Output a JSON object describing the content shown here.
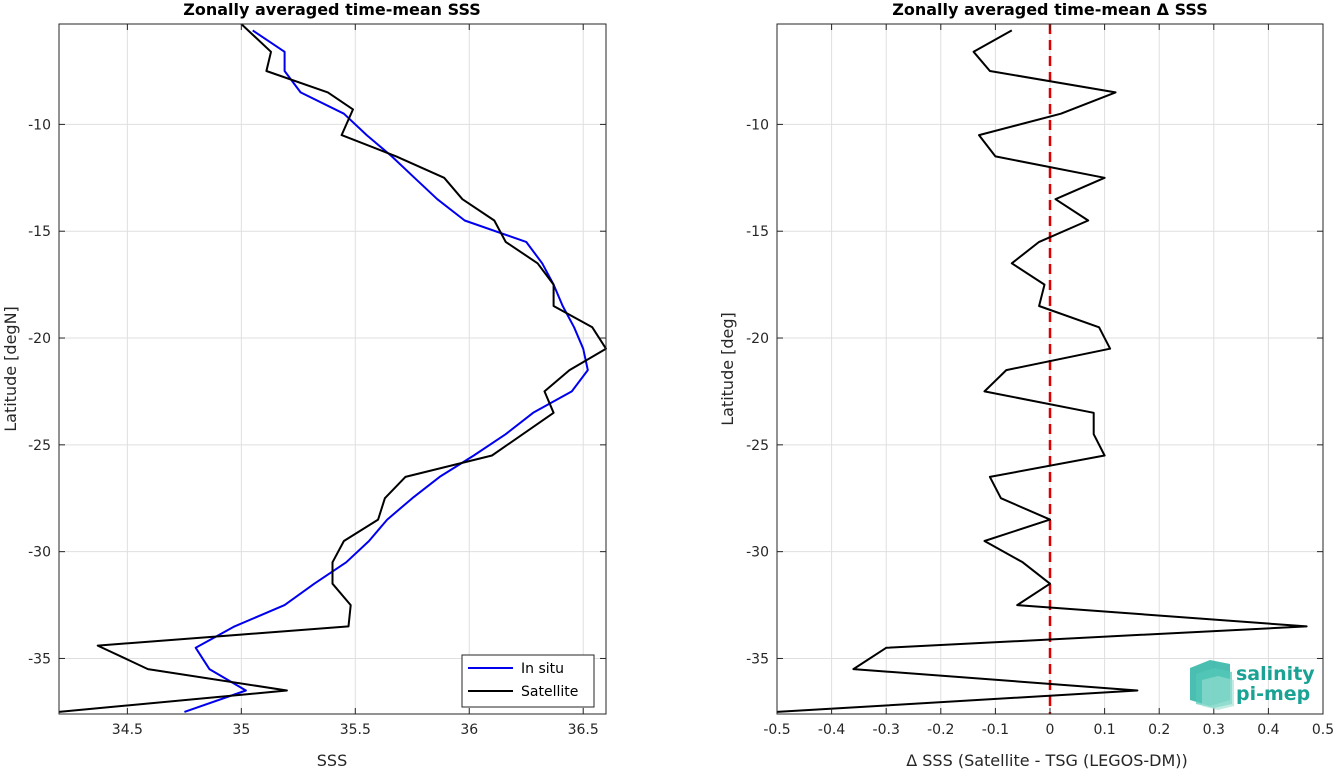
{
  "chart_data": [
    {
      "type": "line",
      "title": "Zonally averaged time-mean SSS",
      "xlabel": "SSS",
      "ylabel": "Latitude [degN]",
      "xlim": [
        34.2,
        36.6
      ],
      "ylim": [
        -37.6,
        -5.3
      ],
      "xticks": [
        34.5,
        35,
        35.5,
        36,
        36.5
      ],
      "xtick_labels": [
        "34.5",
        "35",
        "35.5",
        "36",
        "36.5"
      ],
      "yticks": [
        -10,
        -15,
        -20,
        -25,
        -30,
        -35
      ],
      "ytick_labels": [
        "-10",
        "-15",
        "-20",
        "-25",
        "-30",
        "-35"
      ],
      "grid": true,
      "legend_position": "bottom-right",
      "series": [
        {
          "name": "In situ",
          "color": "#0000ee",
          "points": [
            [
              35.05,
              -5.6
            ],
            [
              35.19,
              -6.6
            ],
            [
              35.19,
              -7.5
            ],
            [
              35.26,
              -8.5
            ],
            [
              35.45,
              -9.5
            ],
            [
              35.55,
              -10.5
            ],
            [
              35.66,
              -11.5
            ],
            [
              35.76,
              -12.5
            ],
            [
              35.86,
              -13.5
            ],
            [
              35.98,
              -14.5
            ],
            [
              36.25,
              -15.5
            ],
            [
              36.32,
              -16.5
            ],
            [
              36.37,
              -17.5
            ],
            [
              36.41,
              -18.5
            ],
            [
              36.46,
              -19.5
            ],
            [
              36.5,
              -20.5
            ],
            [
              36.52,
              -21.5
            ],
            [
              36.45,
              -22.5
            ],
            [
              36.28,
              -23.5
            ],
            [
              36.16,
              -24.5
            ],
            [
              36.02,
              -25.5
            ],
            [
              35.87,
              -26.5
            ],
            [
              35.75,
              -27.5
            ],
            [
              35.64,
              -28.5
            ],
            [
              35.56,
              -29.5
            ],
            [
              35.46,
              -30.5
            ],
            [
              35.32,
              -31.5
            ],
            [
              35.19,
              -32.5
            ],
            [
              34.97,
              -33.5
            ],
            [
              34.8,
              -34.5
            ],
            [
              34.86,
              -35.5
            ],
            [
              35.02,
              -36.5
            ],
            [
              34.75,
              -37.5
            ]
          ]
        },
        {
          "name": "Satellite",
          "color": "#000000",
          "points": [
            [
              35.0,
              -5.3
            ],
            [
              35.13,
              -6.6
            ],
            [
              35.11,
              -7.5
            ],
            [
              35.38,
              -8.5
            ],
            [
              35.49,
              -9.3
            ],
            [
              35.44,
              -10.5
            ],
            [
              35.68,
              -11.5
            ],
            [
              35.89,
              -12.5
            ],
            [
              35.97,
              -13.5
            ],
            [
              36.11,
              -14.5
            ],
            [
              36.16,
              -15.5
            ],
            [
              36.3,
              -16.5
            ],
            [
              36.37,
              -17.5
            ],
            [
              36.37,
              -18.5
            ],
            [
              36.54,
              -19.5
            ],
            [
              36.6,
              -20.5
            ],
            [
              36.44,
              -21.5
            ],
            [
              36.33,
              -22.5
            ],
            [
              36.37,
              -23.5
            ],
            [
              36.1,
              -25.5
            ],
            [
              35.72,
              -26.5
            ],
            [
              35.63,
              -27.5
            ],
            [
              35.6,
              -28.5
            ],
            [
              35.45,
              -29.5
            ],
            [
              35.4,
              -30.5
            ],
            [
              35.4,
              -31.5
            ],
            [
              35.48,
              -32.5
            ],
            [
              35.47,
              -33.5
            ],
            [
              34.37,
              -34.4
            ],
            [
              34.59,
              -35.5
            ],
            [
              35.2,
              -36.5
            ],
            [
              34.2,
              -37.5
            ]
          ]
        }
      ]
    },
    {
      "type": "line",
      "title": "Zonally averaged time-mean Δ SSS",
      "xlabel": "Δ SSS (Satellite - TSG (LEGOS-DM))",
      "ylabel": "Latitude [deg]",
      "xlim": [
        -0.5,
        0.5
      ],
      "ylim": [
        -37.6,
        -5.3
      ],
      "xticks": [
        -0.5,
        -0.4,
        -0.3,
        -0.2,
        -0.1,
        0,
        0.1,
        0.2,
        0.3,
        0.4,
        0.5
      ],
      "xtick_labels": [
        "-0.5",
        "-0.4",
        "-0.3",
        "-0.2",
        "-0.1",
        "0",
        "0.1",
        "0.2",
        "0.3",
        "0.4",
        "0.5"
      ],
      "yticks": [
        -10,
        -15,
        -20,
        -25,
        -30,
        -35
      ],
      "ytick_labels": [
        "-10",
        "-15",
        "-20",
        "-25",
        "-30",
        "-35"
      ],
      "grid": true,
      "reference_line": {
        "x": 0,
        "color": "#dd0000",
        "style": "dashed"
      },
      "series": [
        {
          "name": "",
          "color": "#000000",
          "points": [
            [
              -0.07,
              -5.6
            ],
            [
              -0.14,
              -6.6
            ],
            [
              -0.11,
              -7.5
            ],
            [
              0.12,
              -8.5
            ],
            [
              0.02,
              -9.5
            ],
            [
              -0.13,
              -10.5
            ],
            [
              -0.1,
              -11.5
            ],
            [
              0.1,
              -12.5
            ],
            [
              0.01,
              -13.5
            ],
            [
              0.07,
              -14.5
            ],
            [
              -0.02,
              -15.5
            ],
            [
              -0.07,
              -16.5
            ],
            [
              -0.01,
              -17.5
            ],
            [
              -0.02,
              -18.5
            ],
            [
              0.09,
              -19.5
            ],
            [
              0.11,
              -20.5
            ],
            [
              -0.08,
              -21.5
            ],
            [
              -0.12,
              -22.5
            ],
            [
              0.08,
              -23.5
            ],
            [
              0.08,
              -24.5
            ],
            [
              0.1,
              -25.5
            ],
            [
              -0.11,
              -26.5
            ],
            [
              -0.09,
              -27.5
            ],
            [
              0.0,
              -28.5
            ],
            [
              -0.12,
              -29.5
            ],
            [
              -0.05,
              -30.5
            ],
            [
              0.0,
              -31.5
            ],
            [
              -0.06,
              -32.5
            ],
            [
              0.47,
              -33.5
            ],
            [
              -0.3,
              -34.5
            ],
            [
              -0.36,
              -35.5
            ],
            [
              0.16,
              -36.5
            ],
            [
              -0.5,
              -37.5
            ]
          ]
        }
      ]
    }
  ],
  "logo": {
    "line1": "salinity",
    "line2": "pi-mep",
    "color": "#1aa395"
  }
}
